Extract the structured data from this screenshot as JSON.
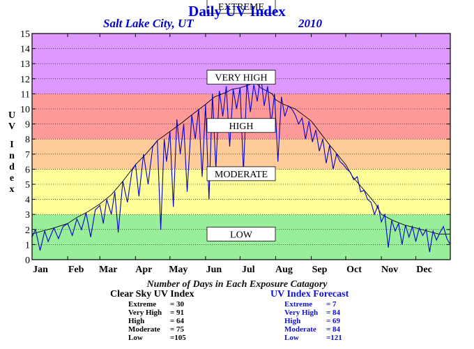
{
  "header": {
    "title": "Daily UV Index",
    "city": "Salt Lake City, UT",
    "year": "2010"
  },
  "y_axis_label": "UV Index",
  "summary": {
    "subtitle": "Number of Days in Each Exposure Catagory",
    "clear_sky": {
      "title": "Clear Sky UV Index",
      "rows": [
        {
          "label": "Extreme",
          "value": "= 30"
        },
        {
          "label": "Very High",
          "value": "= 91"
        },
        {
          "label": "High",
          "value": "= 64"
        },
        {
          "label": "Moderate",
          "value": "= 75"
        },
        {
          "label": "Low",
          "value": "=105"
        }
      ]
    },
    "forecast": {
      "title": "UV Index Forecast",
      "rows": [
        {
          "label": "Extreme",
          "value": "= 7"
        },
        {
          "label": "Very High",
          "value": "= 84"
        },
        {
          "label": "High",
          "value": "= 69"
        },
        {
          "label": "Moderate",
          "value": "= 84"
        },
        {
          "label": "Low",
          "value": "=121"
        }
      ]
    }
  },
  "colors": {
    "low": "#99ee99",
    "moderate": "#ffff99",
    "high": "#ffcc99",
    "very_high": "#ff9a9a",
    "extreme": "#dd99ff",
    "forecast_line": "#0000cc",
    "clear_sky_line": "#000000",
    "title": "#0000e0"
  },
  "chart_data": {
    "type": "line",
    "ylim": [
      0,
      15
    ],
    "xlim": [
      1,
      365
    ],
    "grid": "horizontal dotted",
    "yticks": [
      "0",
      "1",
      "2",
      "3",
      "4",
      "5",
      "6",
      "7",
      "8",
      "9",
      "10",
      "11",
      "12",
      "13",
      "14",
      "15"
    ],
    "month_labels": [
      "Jan",
      "Feb",
      "Mar",
      "Apr",
      "May",
      "Jun",
      "Jul",
      "Aug",
      "Sep",
      "Oct",
      "Nov",
      "Dec"
    ],
    "month_start_day": [
      1,
      32,
      60,
      91,
      121,
      152,
      182,
      213,
      244,
      274,
      305,
      335
    ],
    "bands": [
      {
        "label": "LOW",
        "from": 0,
        "to": 3,
        "color_key": "low",
        "label_y": 1.7
      },
      {
        "label": "MODERATE",
        "from": 3,
        "to": 6,
        "color_key": "moderate",
        "label_y": 5.7
      },
      {
        "label": "HIGH",
        "from": 6,
        "to": 8,
        "color_key": "high",
        "label_y": 8.9
      },
      {
        "label": "VERY HIGH",
        "from": 8,
        "to": 11,
        "color_key": "very_high",
        "label_y": 12.1
      },
      {
        "label": "EXTREME",
        "from": 11,
        "to": 15,
        "color_key": "extreme",
        "label_y": 16.8
      }
    ],
    "series": [
      {
        "key": "clear_sky",
        "x": [
          1,
          10,
          20,
          32,
          40,
          50,
          60,
          70,
          80,
          91,
          100,
          110,
          121,
          130,
          140,
          152,
          160,
          170,
          175,
          182,
          190,
          195,
          200,
          205,
          210,
          213,
          220,
          230,
          244,
          250,
          260,
          274,
          280,
          290,
          300,
          305,
          315,
          325,
          335,
          345,
          355,
          365
        ],
        "values": [
          1.7,
          1.9,
          2.1,
          2.4,
          2.8,
          3.2,
          3.7,
          4.3,
          5.2,
          6.3,
          7.0,
          7.9,
          8.5,
          9.0,
          9.6,
          10.3,
          10.8,
          11.1,
          11.3,
          11.4,
          11.6,
          11.8,
          11.4,
          11.2,
          11.0,
          10.6,
          10.3,
          10.0,
          9.2,
          8.6,
          7.6,
          6.3,
          5.5,
          4.6,
          3.7,
          3.0,
          2.6,
          2.3,
          2.1,
          1.9,
          1.7,
          1.7
        ]
      },
      {
        "key": "forecast",
        "x": [
          1,
          4,
          8,
          12,
          15,
          20,
          24,
          28,
          32,
          36,
          40,
          44,
          48,
          52,
          56,
          60,
          63,
          66,
          70,
          73,
          76,
          80,
          84,
          88,
          91,
          94,
          98,
          102,
          106,
          110,
          113,
          116,
          118,
          121,
          124,
          127,
          130,
          133,
          136,
          140,
          143,
          146,
          149,
          152,
          155,
          158,
          161,
          164,
          167,
          170,
          173,
          176,
          179,
          182,
          185,
          188,
          191,
          194,
          197,
          200,
          203,
          206,
          209,
          212,
          215,
          218,
          221,
          224,
          227,
          230,
          233,
          236,
          239,
          242,
          245,
          248,
          251,
          254,
          257,
          260,
          263,
          266,
          269,
          272,
          275,
          278,
          281,
          284,
          287,
          290,
          293,
          296,
          299,
          302,
          305,
          308,
          311,
          314,
          317,
          320,
          323,
          326,
          329,
          332,
          335,
          338,
          341,
          344,
          347,
          350,
          353,
          356,
          359,
          362,
          365
        ],
        "values": [
          1.5,
          2.0,
          0.6,
          1.9,
          1.2,
          2.1,
          1.4,
          2.2,
          2.4,
          1.6,
          2.7,
          2.0,
          3.1,
          1.5,
          3.3,
          3.6,
          2.4,
          4.0,
          3.0,
          4.5,
          1.8,
          5.2,
          3.8,
          5.9,
          6.3,
          4.2,
          7.0,
          5.0,
          7.5,
          7.9,
          2.0,
          8.0,
          6.5,
          8.5,
          3.5,
          9.3,
          7.0,
          9.0,
          4.5,
          9.6,
          8.0,
          10.0,
          5.5,
          10.3,
          4.0,
          11.0,
          6.0,
          11.2,
          9.5,
          11.5,
          7.5,
          11.3,
          10.0,
          11.4,
          5.8,
          11.8,
          9.8,
          11.6,
          10.5,
          12.3,
          10.2,
          11.5,
          9.0,
          11.0,
          6.5,
          10.8,
          9.5,
          10.2,
          10.0,
          9.6,
          9.0,
          9.4,
          8.0,
          9.2,
          7.8,
          8.6,
          7.2,
          8.0,
          6.4,
          7.6,
          6.0,
          7.0,
          6.5,
          6.3,
          6.0,
          5.8,
          5.3,
          5.5,
          4.5,
          4.6,
          4.0,
          3.8,
          3.0,
          3.6,
          2.5,
          3.0,
          0.8,
          2.6,
          1.9,
          2.4,
          1.0,
          2.3,
          1.5,
          2.2,
          1.2,
          2.1,
          1.6,
          2.0,
          0.5,
          1.9,
          1.3,
          1.8,
          2.2,
          1.4,
          1.0
        ]
      }
    ]
  }
}
